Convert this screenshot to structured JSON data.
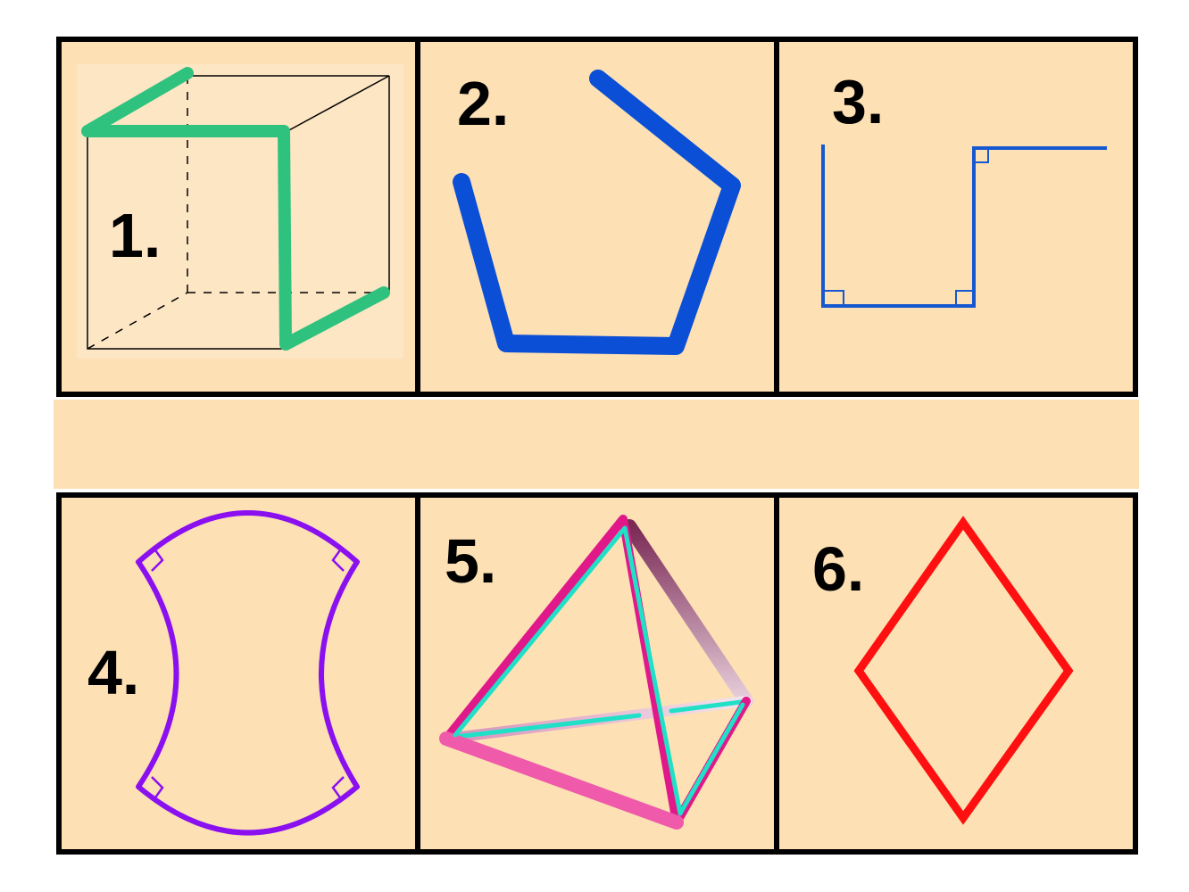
{
  "colors": {
    "page_background": "#ffffff",
    "cell_background": "#fde0b4",
    "grid_border": "#000000",
    "figure1_path": "#2ec27e",
    "figure1_cube": "#000000",
    "figure2_path": "#0a4fd6",
    "figure3_path": "#1658d0",
    "figure4_shape": "#8a10f0",
    "figure5_outer": "#e0188a",
    "figure5_inner": "#20e0c8",
    "figure6_shape": "#ff1010"
  },
  "cells": [
    {
      "label": "1.",
      "figure": "cube-with-polyline-path"
    },
    {
      "label": "2.",
      "figure": "open-pentagon-polyline"
    },
    {
      "label": "3.",
      "figure": "right-angle-step-polyline"
    },
    {
      "label": "4.",
      "figure": "concave-arc-shape"
    },
    {
      "label": "5.",
      "figure": "tetrahedron-frame"
    },
    {
      "label": "6.",
      "figure": "rhombus"
    }
  ]
}
